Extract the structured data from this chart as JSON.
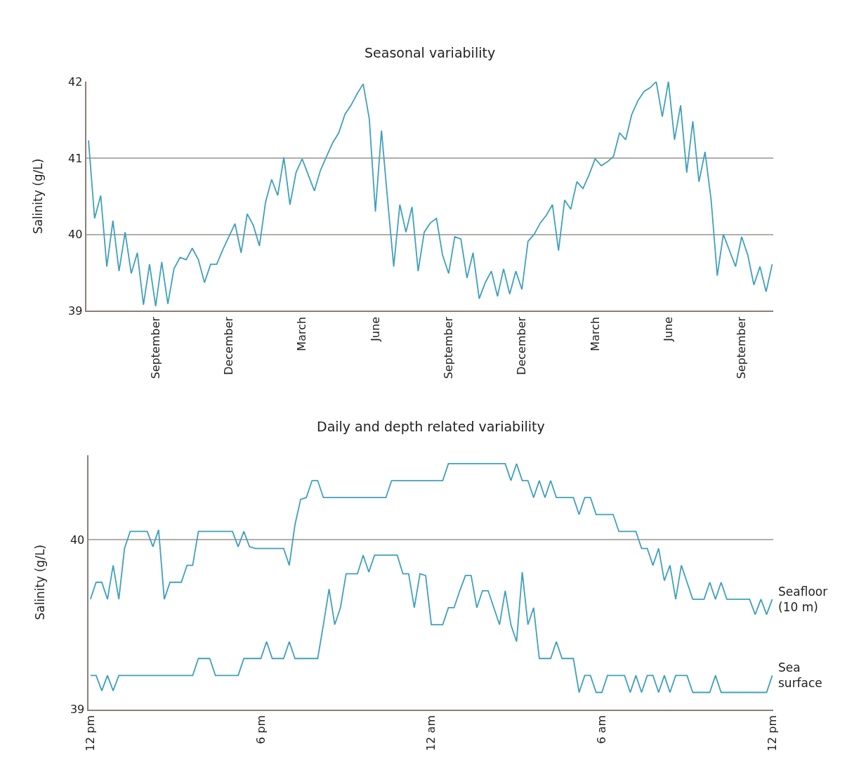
{
  "chart_data": [
    {
      "type": "line",
      "title": "Seasonal variability",
      "ylabel": "Salinity (g/L)",
      "ylim": [
        39,
        42
      ],
      "yticks": [
        39,
        40,
        41,
        42
      ],
      "categories": [
        null,
        null,
        null,
        null,
        null,
        null,
        null,
        null,
        null,
        null,
        null,
        "September",
        null,
        null,
        null,
        null,
        null,
        null,
        null,
        null,
        null,
        null,
        null,
        "December",
        null,
        null,
        null,
        null,
        null,
        null,
        null,
        null,
        null,
        null,
        null,
        "March",
        null,
        null,
        null,
        null,
        null,
        null,
        null,
        null,
        null,
        null,
        null,
        "June",
        null,
        null,
        null,
        null,
        null,
        null,
        null,
        null,
        null,
        null,
        null,
        "September",
        null,
        null,
        null,
        null,
        null,
        null,
        null,
        null,
        null,
        null,
        null,
        "December",
        null,
        null,
        null,
        null,
        null,
        null,
        null,
        null,
        null,
        null,
        null,
        "March",
        null,
        null,
        null,
        null,
        null,
        null,
        null,
        null,
        null,
        null,
        null,
        "June",
        null,
        null,
        null,
        null,
        null,
        null,
        null,
        null,
        null,
        null,
        null,
        "September",
        null,
        null,
        null,
        null,
        null
      ],
      "grid": "y",
      "legend": false,
      "marker": "none",
      "line_style": "solid",
      "series": [
        {
          "color": "#3fa0bd",
          "values": [
            41.23,
            40.21,
            40.51,
            39.58,
            40.18,
            39.52,
            40.03,
            39.49,
            39.76,
            39.08,
            39.61,
            39.06,
            39.64,
            39.09,
            39.55,
            39.7,
            39.67,
            39.82,
            39.67,
            39.37,
            39.61,
            39.61,
            39.8,
            39.97,
            40.14,
            39.76,
            40.27,
            40.12,
            39.85,
            40.42,
            40.72,
            40.51,
            41.01,
            40.39,
            40.81,
            40.99,
            40.78,
            40.57,
            40.84,
            41.02,
            41.2,
            41.33,
            41.57,
            41.69,
            41.84,
            41.97,
            41.51,
            40.3,
            41.36,
            40.45,
            39.58,
            40.39,
            40.03,
            40.36,
            39.52,
            40.03,
            40.15,
            40.21,
            39.73,
            39.49,
            39.97,
            39.94,
            39.43,
            39.76,
            39.16,
            39.37,
            39.52,
            39.19,
            39.55,
            39.22,
            39.52,
            39.28,
            39.91,
            40.0,
            40.15,
            40.25,
            40.39,
            39.79,
            40.45,
            40.33,
            40.69,
            40.6,
            40.78,
            40.99,
            40.9,
            40.95,
            41.02,
            41.33,
            41.24,
            41.57,
            41.75,
            41.87,
            41.92,
            42.0,
            41.54,
            42.0,
            41.24,
            41.69,
            40.81,
            41.48,
            40.69,
            41.08,
            40.45,
            39.46,
            40.0,
            39.79,
            39.58,
            39.97,
            39.73,
            39.34,
            39.58,
            39.25,
            39.61
          ]
        }
      ]
    },
    {
      "type": "line",
      "title": "Daily and depth related variability",
      "ylabel": "Salinity (g/L)",
      "ylim": [
        39,
        40.5
      ],
      "yticks": [
        39,
        40
      ],
      "categories": [
        "12 pm",
        null,
        null,
        null,
        null,
        null,
        null,
        null,
        null,
        null,
        null,
        null,
        null,
        null,
        null,
        null,
        null,
        null,
        null,
        null,
        null,
        null,
        null,
        null,
        null,
        null,
        null,
        null,
        null,
        null,
        "6 pm",
        null,
        null,
        null,
        null,
        null,
        null,
        null,
        null,
        null,
        null,
        null,
        null,
        null,
        null,
        null,
        null,
        null,
        null,
        null,
        null,
        null,
        null,
        null,
        null,
        null,
        null,
        null,
        null,
        null,
        "12 am",
        null,
        null,
        null,
        null,
        null,
        null,
        null,
        null,
        null,
        null,
        null,
        null,
        null,
        null,
        null,
        null,
        null,
        null,
        null,
        null,
        null,
        null,
        null,
        null,
        null,
        null,
        null,
        null,
        null,
        "6 am",
        null,
        null,
        null,
        null,
        null,
        null,
        null,
        null,
        null,
        null,
        null,
        null,
        null,
        null,
        null,
        null,
        null,
        null,
        null,
        null,
        null,
        null,
        null,
        null,
        null,
        null,
        null,
        null,
        null,
        "12 pm"
      ],
      "grid": "y",
      "legend": false,
      "marker": "none",
      "line_style": "solid",
      "series": [
        {
          "name": "Seafloor (10 m)",
          "color": "#3fa0bd",
          "values": [
            39.65,
            39.75,
            39.75,
            39.65,
            39.85,
            39.65,
            39.95,
            40.05,
            40.05,
            40.05,
            40.05,
            39.96,
            40.06,
            39.65,
            39.75,
            39.75,
            39.75,
            39.85,
            39.85,
            40.05,
            40.05,
            40.05,
            40.05,
            40.05,
            40.05,
            40.05,
            39.96,
            40.05,
            39.96,
            39.95,
            39.95,
            39.95,
            39.95,
            39.95,
            39.95,
            39.85,
            40.09,
            40.24,
            40.25,
            40.35,
            40.35,
            40.25,
            40.25,
            40.25,
            40.25,
            40.25,
            40.25,
            40.25,
            40.25,
            40.25,
            40.25,
            40.25,
            40.25,
            40.35,
            40.35,
            40.35,
            40.35,
            40.35,
            40.35,
            40.35,
            40.35,
            40.35,
            40.35,
            40.45,
            40.45,
            40.45,
            40.45,
            40.45,
            40.45,
            40.45,
            40.45,
            40.45,
            40.45,
            40.45,
            40.35,
            40.45,
            40.35,
            40.35,
            40.25,
            40.35,
            40.25,
            40.35,
            40.25,
            40.25,
            40.25,
            40.25,
            40.15,
            40.25,
            40.25,
            40.15,
            40.15,
            40.15,
            40.15,
            40.05,
            40.05,
            40.05,
            40.05,
            39.95,
            39.95,
            39.85,
            39.95,
            39.76,
            39.85,
            39.65,
            39.85,
            39.75,
            39.65,
            39.65,
            39.65,
            39.75,
            39.65,
            39.75,
            39.65,
            39.65,
            39.65,
            39.65,
            39.65,
            39.56,
            39.65,
            39.56,
            39.65
          ]
        },
        {
          "name": "Sea surface",
          "color": "#3fa0bd",
          "values": [
            39.2,
            39.2,
            39.11,
            39.2,
            39.11,
            39.2,
            39.2,
            39.2,
            39.2,
            39.2,
            39.2,
            39.2,
            39.2,
            39.2,
            39.2,
            39.2,
            39.2,
            39.2,
            39.2,
            39.3,
            39.3,
            39.3,
            39.2,
            39.2,
            39.2,
            39.2,
            39.2,
            39.3,
            39.3,
            39.3,
            39.3,
            39.4,
            39.3,
            39.3,
            39.3,
            39.4,
            39.3,
            39.3,
            39.3,
            39.3,
            39.3,
            39.5,
            39.71,
            39.5,
            39.6,
            39.8,
            39.8,
            39.8,
            39.91,
            39.81,
            39.91,
            39.91,
            39.91,
            39.91,
            39.91,
            39.8,
            39.8,
            39.6,
            39.8,
            39.79,
            39.5,
            39.5,
            39.5,
            39.6,
            39.6,
            39.7,
            39.79,
            39.79,
            39.6,
            39.7,
            39.7,
            39.6,
            39.5,
            39.7,
            39.5,
            39.4,
            39.81,
            39.5,
            39.6,
            39.3,
            39.3,
            39.3,
            39.4,
            39.3,
            39.3,
            39.3,
            39.1,
            39.2,
            39.2,
            39.1,
            39.1,
            39.2,
            39.2,
            39.2,
            39.2,
            39.1,
            39.2,
            39.1,
            39.2,
            39.2,
            39.1,
            39.2,
            39.1,
            39.2,
            39.2,
            39.2,
            39.1,
            39.1,
            39.1,
            39.1,
            39.2,
            39.1,
            39.1,
            39.1,
            39.1,
            39.1,
            39.1,
            39.1,
            39.1,
            39.1,
            39.2
          ]
        }
      ]
    }
  ]
}
